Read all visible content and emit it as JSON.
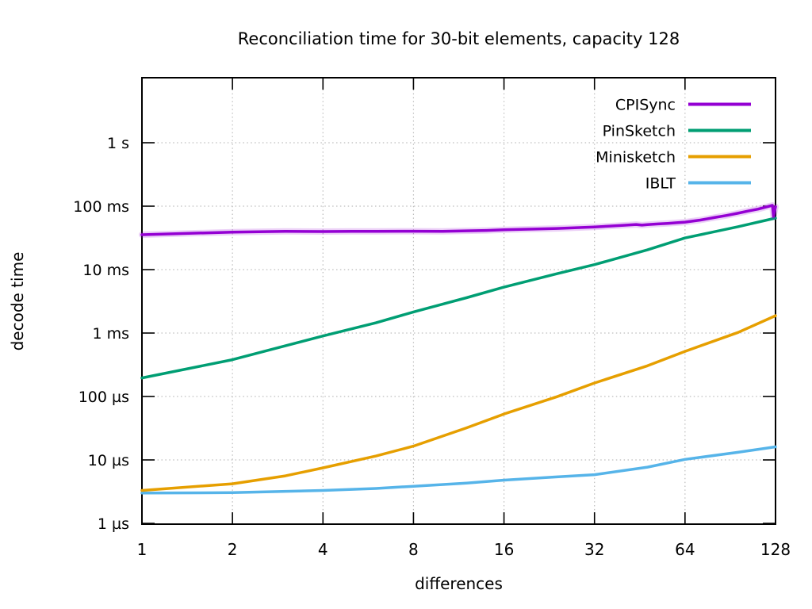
{
  "chart_data": {
    "type": "line",
    "title": "Reconciliation time for 30-bit elements, capacity 128",
    "xlabel": "differences",
    "ylabel": "decode time",
    "x_scale": "log2",
    "y_scale": "log10",
    "grid": true,
    "legend_position": "top-right",
    "x_range": [
      1,
      128
    ],
    "y_range_us": [
      0.94,
      10600000
    ],
    "x_ticks": [
      {
        "value": 1,
        "label": "1"
      },
      {
        "value": 2,
        "label": "2"
      },
      {
        "value": 4,
        "label": "4"
      },
      {
        "value": 8,
        "label": "8"
      },
      {
        "value": 16,
        "label": "16"
      },
      {
        "value": 32,
        "label": "32"
      },
      {
        "value": 64,
        "label": "64"
      },
      {
        "value": 128,
        "label": "128"
      }
    ],
    "y_ticks": [
      {
        "value_us": 1,
        "label": "1 µs"
      },
      {
        "value_us": 10,
        "label": "10 µs"
      },
      {
        "value_us": 100,
        "label": "100 µs"
      },
      {
        "value_us": 1000,
        "label": "1 ms"
      },
      {
        "value_us": 10000,
        "label": "10 ms"
      },
      {
        "value_us": 100000,
        "label": "100 ms"
      },
      {
        "value_us": 1000000,
        "label": "1 s"
      }
    ],
    "series": [
      {
        "name": "CPISync",
        "color": "#9400d3",
        "halo": true,
        "points_us": [
          [
            1,
            35500
          ],
          [
            2,
            39000
          ],
          [
            3,
            40000
          ],
          [
            4,
            39800
          ],
          [
            5,
            40200
          ],
          [
            6,
            40000
          ],
          [
            8,
            40300
          ],
          [
            10,
            40200
          ],
          [
            12,
            40800
          ],
          [
            14,
            41500
          ],
          [
            16,
            42500
          ],
          [
            20,
            43500
          ],
          [
            24,
            44500
          ],
          [
            28,
            45800
          ],
          [
            32,
            47000
          ],
          [
            36,
            48500
          ],
          [
            40,
            50000
          ],
          [
            44,
            51500
          ],
          [
            46,
            50200
          ],
          [
            48,
            51200
          ],
          [
            52,
            52500
          ],
          [
            56,
            53500
          ],
          [
            60,
            54800
          ],
          [
            64,
            56000
          ],
          [
            72,
            60500
          ],
          [
            80,
            66000
          ],
          [
            88,
            71500
          ],
          [
            96,
            77500
          ],
          [
            104,
            84000
          ],
          [
            112,
            90000
          ],
          [
            118,
            96000
          ],
          [
            122,
            100000
          ],
          [
            125,
            103000
          ],
          [
            126,
            69000
          ],
          [
            127,
            82000
          ],
          [
            128,
            98000
          ]
        ]
      },
      {
        "name": "PinSketch",
        "color": "#009e73",
        "halo": false,
        "points_us": [
          [
            1,
            196
          ],
          [
            2,
            380
          ],
          [
            3,
            630
          ],
          [
            4,
            900
          ],
          [
            6,
            1450
          ],
          [
            8,
            2150
          ],
          [
            12,
            3600
          ],
          [
            16,
            5300
          ],
          [
            24,
            8600
          ],
          [
            32,
            12000
          ],
          [
            48,
            20500
          ],
          [
            64,
            31500
          ],
          [
            96,
            47500
          ],
          [
            128,
            65000
          ]
        ]
      },
      {
        "name": "Minisketch",
        "color": "#e69f00",
        "halo": false,
        "points_us": [
          [
            1,
            3.3
          ],
          [
            2,
            4.2
          ],
          [
            3,
            5.6
          ],
          [
            4,
            7.5
          ],
          [
            6,
            11.5
          ],
          [
            8,
            16.5
          ],
          [
            12,
            32
          ],
          [
            16,
            53
          ],
          [
            24,
            99
          ],
          [
            32,
            163
          ],
          [
            48,
            305
          ],
          [
            64,
            515
          ],
          [
            96,
            1020
          ],
          [
            128,
            1880
          ]
        ]
      },
      {
        "name": "IBLT",
        "color": "#56b4e9",
        "halo": false,
        "points_us": [
          [
            1,
            3.0
          ],
          [
            2,
            3.05
          ],
          [
            4,
            3.3
          ],
          [
            6,
            3.55
          ],
          [
            8,
            3.85
          ],
          [
            12,
            4.3
          ],
          [
            16,
            4.8
          ],
          [
            24,
            5.4
          ],
          [
            32,
            5.85
          ],
          [
            48,
            7.7
          ],
          [
            64,
            10.2
          ],
          [
            96,
            13.2
          ],
          [
            128,
            16.1
          ]
        ]
      }
    ]
  },
  "style": {
    "background": "#ffffff",
    "grid_color": "#bdbdbd",
    "frame_color": "#000000",
    "text_color": "#000000"
  }
}
